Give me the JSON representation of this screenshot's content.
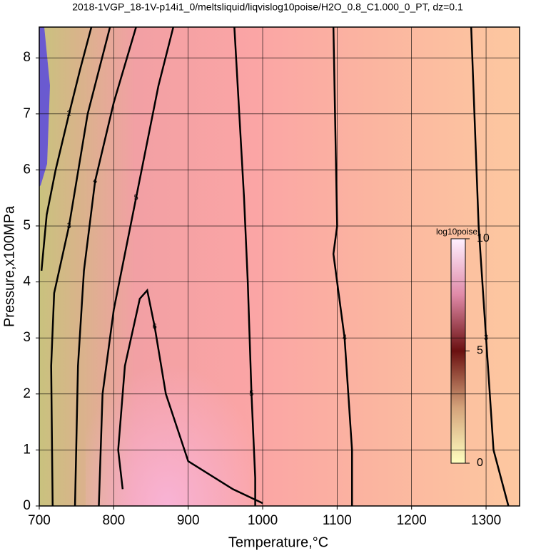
{
  "chart_data": {
    "type": "contour",
    "title": "2018-1VGP_18-1V-p14i1_0/meltsliquid/liqvislog10poise/H2O_0.8_C1.000_0_PT, dz=0.1",
    "x_label": "Temperature,°C",
    "y_label": "Pressure,x100MPa",
    "xlim": [
      700,
      1345
    ],
    "ylim": [
      0,
      8.55
    ],
    "xticks": [
      700,
      800,
      900,
      1000,
      1100,
      1200,
      1300
    ],
    "yticks": [
      0,
      1,
      2,
      3,
      4,
      5,
      6,
      7,
      8
    ],
    "grid": true,
    "colorbar": {
      "label": "log10poise",
      "lim": [
        0,
        10
      ],
      "ticks": [
        0,
        5,
        10
      ]
    },
    "contours": [
      {
        "level": 2,
        "x": [
          703,
          710,
          722,
          740,
          755,
          770
        ],
        "y": [
          4.2,
          5.2,
          6.0,
          7.0,
          7.8,
          8.55
        ]
      },
      {
        "level": 3,
        "x": [
          718,
          716,
          720,
          740,
          765,
          795
        ],
        "y": [
          0,
          2.5,
          3.8,
          5.0,
          7.0,
          8.55
        ]
      },
      {
        "level": 4,
        "x": [
          748,
          752,
          760,
          775,
          800,
          830
        ],
        "y": [
          0,
          2.5,
          4.2,
          5.8,
          7.2,
          8.55
        ]
      },
      {
        "level": 5,
        "x": [
          780,
          785,
          800,
          830,
          860,
          880
        ],
        "y": [
          0,
          2.0,
          3.5,
          5.5,
          7.5,
          8.55
        ]
      },
      {
        "level": 6,
        "x": [
          812,
          806,
          815,
          835,
          845,
          855,
          870,
          900,
          960,
          1000
        ],
        "y": [
          0.3,
          1.0,
          2.5,
          3.7,
          3.85,
          3.2,
          2.0,
          0.8,
          0.3,
          0.05
        ]
      },
      {
        "level": 5,
        "x": [
          962,
          975,
          980,
          985,
          990,
          990
        ],
        "y": [
          8.55,
          5.5,
          4.0,
          2.0,
          0.5,
          0
        ]
      },
      {
        "level": 4,
        "x": [
          1095,
          1100,
          1095,
          1110,
          1120,
          1120
        ],
        "y": [
          8.55,
          5.0,
          4.5,
          3.0,
          1.0,
          0
        ]
      },
      {
        "level": 3,
        "x": [
          1280,
          1290,
          1300,
          1310,
          1330
        ],
        "y": [
          8.55,
          5.0,
          3.0,
          1.0,
          0
        ]
      }
    ]
  }
}
